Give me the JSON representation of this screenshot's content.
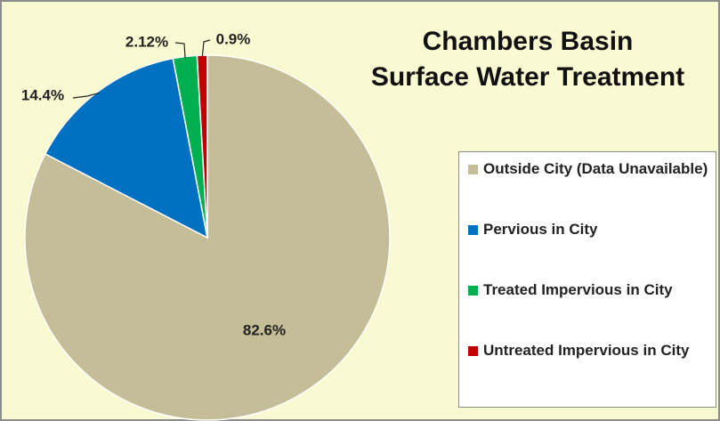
{
  "chart_data": {
    "type": "pie",
    "title": [
      "Chambers Basin",
      "Surface Water Treatment"
    ],
    "categories": [
      "Outside City (Data Unavailable)",
      "Pervious in City",
      "Treated Impervious in City",
      "Untreated Impervious in City"
    ],
    "values": [
      82.6,
      14.4,
      2.12,
      0.9
    ],
    "value_labels": [
      "82.6%",
      "14.4%",
      "2.12%",
      "0.9%"
    ],
    "colors": [
      "#c4bd97",
      "#0070c0",
      "#00b050",
      "#c00000"
    ],
    "legend": "right"
  }
}
